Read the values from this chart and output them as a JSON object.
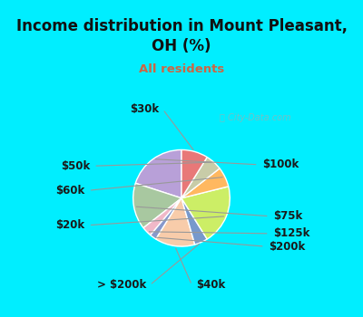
{
  "title": "Income distribution in Mount Pleasant,\nOH (%)",
  "subtitle": "All residents",
  "title_color": "#111111",
  "subtitle_color": "#cc6644",
  "background_cyan": "#00eeff",
  "background_chart": "#e8f5ee",
  "watermark": "ⓘ City-Data.com",
  "labels": [
    "$100k",
    "$75k",
    "$125k",
    "$200k",
    "$40k",
    "> $200k",
    "$20k",
    "$60k",
    "$50k",
    "$30k"
  ],
  "values": [
    18,
    14,
    3,
    2,
    12,
    4,
    18,
    6,
    5,
    8
  ],
  "colors": [
    "#b8a0d8",
    "#a8c8a0",
    "#f0b8c8",
    "#8899cc",
    "#f8ccaa",
    "#7799cc",
    "#ccee66",
    "#ffb860",
    "#c8cca8",
    "#e87878"
  ],
  "startangle": 90,
  "label_fontsize": 8.5,
  "label_color": "#1a1a1a"
}
